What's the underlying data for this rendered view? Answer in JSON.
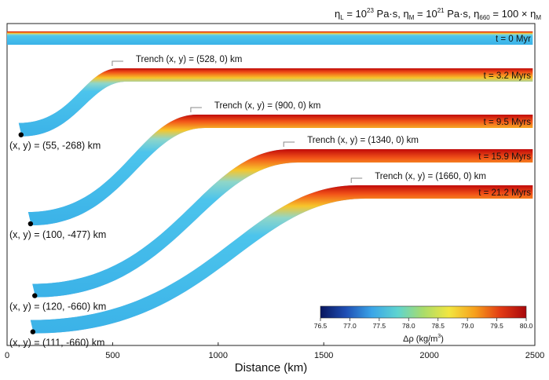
{
  "chart_data": {
    "type": "area",
    "title_parts": {
      "eta_l": "η",
      "sub_l": "L",
      "eq1": " = 10",
      "exp1": "23",
      "unit1": " Pa·s, ",
      "eta_m": "η",
      "sub_m": "M",
      "eq2": " = 10",
      "exp2": "21",
      "unit2": " Pa·s, ",
      "eta_660": "η",
      "sub_660": "660",
      "eq3": " = 100 × η",
      "sub_m2": "M"
    },
    "xlabel": "Distance (km)",
    "xlim": [
      0,
      2500
    ],
    "xticks": [
      0,
      500,
      1000,
      1500,
      2000,
      2500
    ],
    "xtick_labels": [
      "0",
      "500",
      "1000",
      "1500",
      "2000",
      "2500"
    ],
    "snapshots": [
      {
        "time_label": "t = 0 Myr",
        "trench_km": null,
        "tip_km": [
          0,
          0
        ],
        "trench_label": "",
        "tip_label": ""
      },
      {
        "time_label": "t = 3.2 Myrs",
        "trench_km": 528,
        "tip_km": [
          55,
          -268
        ],
        "trench_label": "Trench (x, y) = (528, 0) km",
        "tip_label": "(x, y) = (55, -268) km"
      },
      {
        "time_label": "t = 9.5 Myrs",
        "trench_km": 900,
        "tip_km": [
          100,
          -477
        ],
        "trench_label": "Trench (x, y) = (900, 0) km",
        "tip_label": "(x, y) = (100, -477) km"
      },
      {
        "time_label": "t = 15.9 Myrs",
        "trench_km": 1340,
        "tip_km": [
          120,
          -660
        ],
        "trench_label": "Trench (x, y) = (1340, 0) km",
        "tip_label": "(x, y) = (120, -660) km"
      },
      {
        "time_label": "t = 21.2 Myrs",
        "trench_km": 1660,
        "tip_km": [
          111,
          -660
        ],
        "trench_label": "Trench (x, y) = (1660, 0) km",
        "tip_label": "(x, y) = (111, -660) km"
      }
    ],
    "colorbar": {
      "label_main": "Δρ (kg/m",
      "label_sup": "3",
      "label_end": ")",
      "range": [
        76.5,
        80.0
      ],
      "ticks": [
        "76.5",
        "77.0",
        "77.5",
        "78.0",
        "78.5",
        "79.0",
        "79.5",
        "80.0"
      ],
      "colors": [
        "#08155e",
        "#1f4fb5",
        "#3aa5e8",
        "#5ed4d0",
        "#a9dc6a",
        "#f2e640",
        "#f7a01c",
        "#e23a14",
        "#a8070b"
      ]
    }
  }
}
